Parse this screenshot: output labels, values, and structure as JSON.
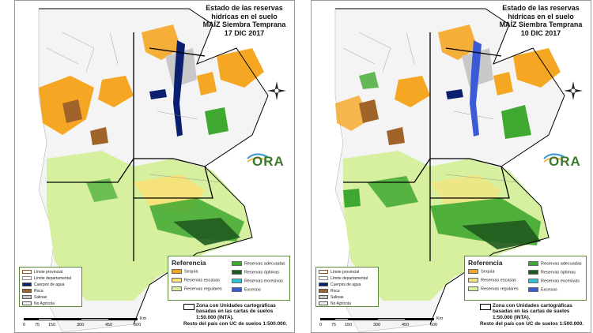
{
  "panels": [
    {
      "id": "left",
      "title_lines": [
        "Estado de las reservas",
        "hídricas en el suelo",
        "MAÍZ Siembra Temprana",
        "17 DIC 2017"
      ],
      "logo_text": "ORA"
    },
    {
      "id": "right",
      "title_lines": [
        "Estado de las reservas",
        "hídricas en el suelo",
        "MAÍZ Siembra Temprana",
        "10 DIC 2017"
      ],
      "logo_text": "ORA"
    }
  ],
  "legend": {
    "title": "Referencia",
    "items": [
      {
        "label": "Sequía",
        "color": "#f5a623"
      },
      {
        "label": "Reservas escasas",
        "color": "#f5e27a"
      },
      {
        "label": "Reservas regulares",
        "color": "#d6f0a0"
      },
      {
        "label": "Reservas adecuadas",
        "color": "#3fa830"
      },
      {
        "label": "Reservas óptimas",
        "color": "#1f5a1f"
      },
      {
        "label": "Reservas excesivas",
        "color": "#2fc6d8"
      },
      {
        "label": "Excesos",
        "color": "#3a5ad8"
      }
    ]
  },
  "limits": {
    "items": [
      {
        "label": "Límite provincial",
        "color": "#ffffff",
        "border": "#8a5a2a"
      },
      {
        "label": "Límite departamental",
        "color": "#ffffff",
        "border": "#888888"
      },
      {
        "label": "Cuerpos de agua",
        "color": "#0a1f6e",
        "border": "#0a1f6e"
      },
      {
        "label": "Roca",
        "color": "#a0642a",
        "border": "#7a4a1a"
      },
      {
        "label": "Salinas",
        "color": "#c8c8c8",
        "border": "#999999"
      },
      {
        "label": "No Agrícola",
        "color": "#f4f4f4",
        "border": "#999999"
      }
    ]
  },
  "zone_note": "Zona con Unidades cartográficas basadas en las cartas de suelos 1:50.000 (INTA).",
  "resto_note": "Resto del país con UC de suelos 1:500.000.",
  "scale": {
    "unit": "Km",
    "ticks": [
      "0",
      "75",
      "150",
      "300",
      "450",
      "600"
    ]
  },
  "colors": {
    "panel_border": "#9a9a9a",
    "legend_border": "#5a8a3a",
    "province_line": "#000000"
  }
}
